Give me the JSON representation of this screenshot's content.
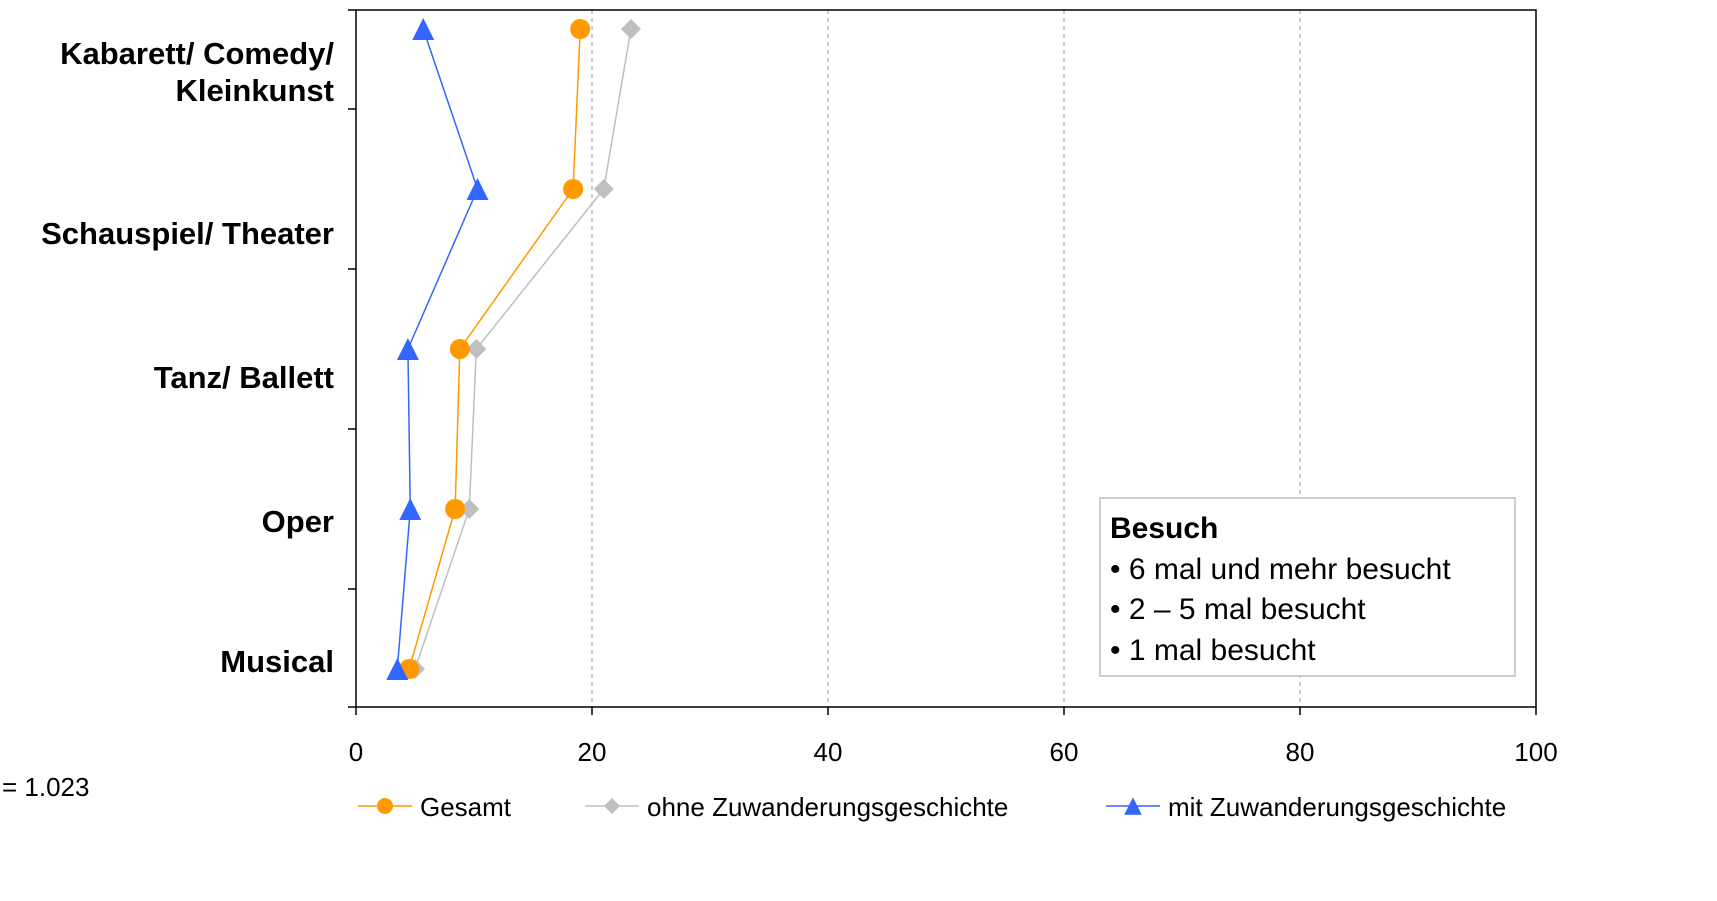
{
  "chart_data": {
    "type": "line",
    "orientation": "horizontal",
    "categories": [
      "Kabarett/ Comedy/ Kleinkunst",
      "Schauspiel/ Theater",
      "Tanz/ Ballett",
      "Oper",
      "Musical"
    ],
    "category_label_lines": [
      [
        "Kabarett/ Comedy/",
        "Kleinkunst"
      ],
      [
        "Schauspiel/ Theater"
      ],
      [
        "Tanz/ Ballett"
      ],
      [
        "Oper"
      ],
      [
        "Musical"
      ]
    ],
    "series": [
      {
        "name": "Gesamt",
        "color": "#FF9900",
        "marker": "circle",
        "values": [
          19.0,
          18.4,
          8.8,
          8.4,
          4.5
        ]
      },
      {
        "name": "ohne Zuwanderungsgeschichte",
        "color": "#BFBFBF",
        "marker": "diamond",
        "values": [
          23.3,
          21.0,
          10.2,
          9.6,
          5.0
        ]
      },
      {
        "name": "mit Zuwanderungsgeschichte",
        "color": "#3366FF",
        "marker": "triangle",
        "values": [
          5.7,
          10.3,
          4.4,
          4.6,
          3.5
        ]
      }
    ],
    "xlim": [
      0,
      100
    ],
    "xticks": [
      0,
      20,
      40,
      60,
      80,
      100
    ],
    "grid": "vertical-dashed",
    "legend_position": "bottom",
    "title": "",
    "xlabel": "",
    "ylabel": ""
  },
  "annotation_box": {
    "title": "Besuch",
    "items": [
      "• 6 mal und mehr besucht",
      "• 2 – 5 mal besucht",
      "• 1 mal besucht"
    ]
  },
  "note": "= 1.023"
}
